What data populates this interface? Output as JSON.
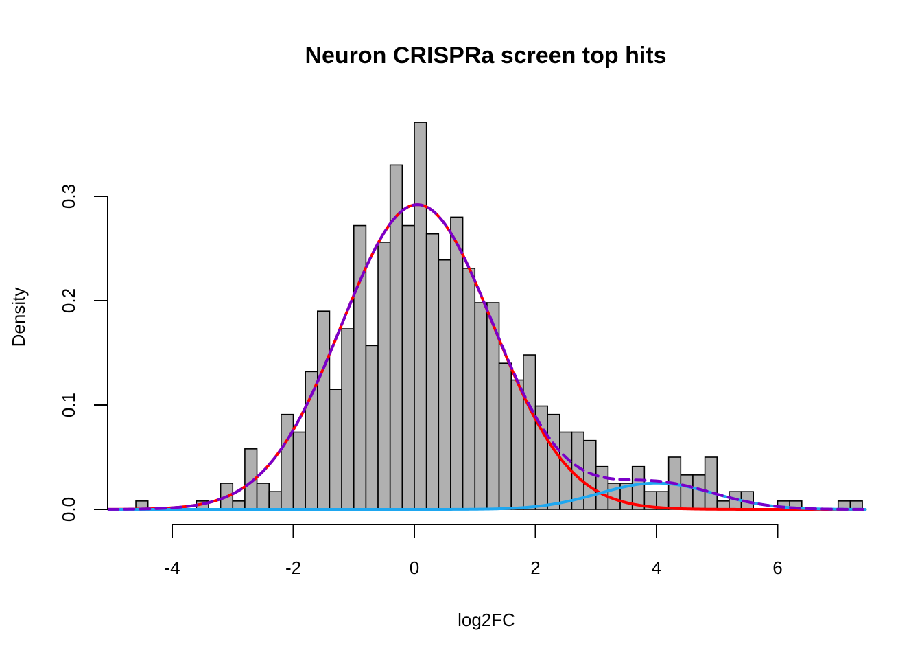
{
  "chart_data": {
    "type": "bar",
    "title": "Neuron CRISPRa screen top hits",
    "xlabel": "log2FC",
    "ylabel": "Density",
    "xlim": [
      -4,
      6
    ],
    "ylim": [
      0,
      0.3
    ],
    "x_ticks": [
      -4,
      -2,
      0,
      2,
      4,
      6
    ],
    "y_ticks": [
      0.0,
      0.1,
      0.2,
      0.3
    ],
    "x_tick_labels": [
      "-4",
      "-2",
      "0",
      "2",
      "4",
      "6"
    ],
    "y_tick_labels": [
      "0.0",
      "0.1",
      "0.2",
      "0.3"
    ],
    "grid": false,
    "bin_width": 0.2,
    "bar_color": "#b0b0b0",
    "bars": [
      {
        "x0": -4.6,
        "density": 0.008
      },
      {
        "x0": -4.4,
        "density": 0
      },
      {
        "x0": -4.2,
        "density": 0
      },
      {
        "x0": -4.0,
        "density": 0
      },
      {
        "x0": -3.8,
        "density": 0
      },
      {
        "x0": -3.6,
        "density": 0.008
      },
      {
        "x0": -3.4,
        "density": 0
      },
      {
        "x0": -3.2,
        "density": 0.025
      },
      {
        "x0": -3.0,
        "density": 0.008
      },
      {
        "x0": -2.8,
        "density": 0.058
      },
      {
        "x0": -2.6,
        "density": 0.025
      },
      {
        "x0": -2.4,
        "density": 0.017
      },
      {
        "x0": -2.2,
        "density": 0.091
      },
      {
        "x0": -2.0,
        "density": 0.074
      },
      {
        "x0": -1.8,
        "density": 0.132
      },
      {
        "x0": -1.6,
        "density": 0.19
      },
      {
        "x0": -1.4,
        "density": 0.115
      },
      {
        "x0": -1.2,
        "density": 0.173
      },
      {
        "x0": -1.0,
        "density": 0.272
      },
      {
        "x0": -0.8,
        "density": 0.157
      },
      {
        "x0": -0.6,
        "density": 0.256
      },
      {
        "x0": -0.4,
        "density": 0.33
      },
      {
        "x0": -0.2,
        "density": 0.272
      },
      {
        "x0": 0.0,
        "density": 0.371
      },
      {
        "x0": 0.2,
        "density": 0.264
      },
      {
        "x0": 0.4,
        "density": 0.239
      },
      {
        "x0": 0.6,
        "density": 0.28
      },
      {
        "x0": 0.8,
        "density": 0.231
      },
      {
        "x0": 1.0,
        "density": 0.198
      },
      {
        "x0": 1.2,
        "density": 0.198
      },
      {
        "x0": 1.4,
        "density": 0.14
      },
      {
        "x0": 1.6,
        "density": 0.124
      },
      {
        "x0": 1.8,
        "density": 0.148
      },
      {
        "x0": 2.0,
        "density": 0.099
      },
      {
        "x0": 2.2,
        "density": 0.091
      },
      {
        "x0": 2.4,
        "density": 0.074
      },
      {
        "x0": 2.6,
        "density": 0.074
      },
      {
        "x0": 2.8,
        "density": 0.066
      },
      {
        "x0": 3.0,
        "density": 0.041
      },
      {
        "x0": 3.2,
        "density": 0.025
      },
      {
        "x0": 3.4,
        "density": 0.025
      },
      {
        "x0": 3.6,
        "density": 0.041
      },
      {
        "x0": 3.8,
        "density": 0.017
      },
      {
        "x0": 4.0,
        "density": 0.017
      },
      {
        "x0": 4.2,
        "density": 0.05
      },
      {
        "x0": 4.4,
        "density": 0.033
      },
      {
        "x0": 4.6,
        "density": 0.033
      },
      {
        "x0": 4.8,
        "density": 0.05
      },
      {
        "x0": 5.0,
        "density": 0.008
      },
      {
        "x0": 5.2,
        "density": 0.017
      },
      {
        "x0": 5.4,
        "density": 0.017
      },
      {
        "x0": 5.6,
        "density": 0
      },
      {
        "x0": 5.8,
        "density": 0
      },
      {
        "x0": 6.0,
        "density": 0.008
      },
      {
        "x0": 6.2,
        "density": 0.008
      },
      {
        "x0": 6.4,
        "density": 0
      },
      {
        "x0": 6.6,
        "density": 0
      },
      {
        "x0": 6.8,
        "density": 0
      },
      {
        "x0": 7.0,
        "density": 0.008
      },
      {
        "x0": 7.2,
        "density": 0.008
      }
    ],
    "curves": [
      {
        "name": "",
        "kind": "normal",
        "color": "#ff0000",
        "dashed": false,
        "mean": 0.05,
        "sd": 1.25,
        "weight": 0.915
      },
      {
        "name": "",
        "kind": "normal",
        "color": "#1ea7f0",
        "dashed": false,
        "mean": 4.0,
        "sd": 0.95,
        "weight": 0.06
      },
      {
        "name": "",
        "kind": "mixture",
        "color": "#7a00c8",
        "dashed": true
      }
    ],
    "curve_x_range": [
      -5.05,
      7.45
    ]
  }
}
